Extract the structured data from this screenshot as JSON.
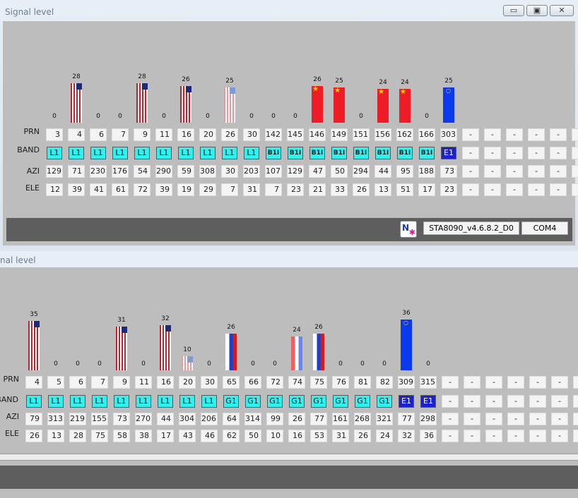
{
  "windows": [
    {
      "title": "Signal level",
      "row_labels": [
        "PRN",
        "BAND",
        "AZI",
        "ELE"
      ],
      "satellites": [
        {
          "level": 0,
          "flag": "none",
          "prn": "3",
          "band": "L1",
          "azi": "129",
          "ele": "12"
        },
        {
          "level": 28,
          "flag": "us",
          "prn": "4",
          "band": "L1",
          "azi": "71",
          "ele": "39"
        },
        {
          "level": 0,
          "flag": "none",
          "prn": "6",
          "band": "L1",
          "azi": "230",
          "ele": "41"
        },
        {
          "level": 0,
          "flag": "none",
          "prn": "7",
          "band": "L1",
          "azi": "176",
          "ele": "61"
        },
        {
          "level": 28,
          "flag": "us",
          "prn": "9",
          "band": "L1",
          "azi": "54",
          "ele": "72"
        },
        {
          "level": 0,
          "flag": "none",
          "prn": "11",
          "band": "L1",
          "azi": "290",
          "ele": "39"
        },
        {
          "level": 26,
          "flag": "us",
          "prn": "16",
          "band": "L1",
          "azi": "59",
          "ele": "19"
        },
        {
          "level": 0,
          "flag": "none",
          "prn": "20",
          "band": "L1",
          "azi": "308",
          "ele": "29"
        },
        {
          "level": 25,
          "flag": "us-faded",
          "prn": "26",
          "band": "L1",
          "azi": "30",
          "ele": "7"
        },
        {
          "level": 0,
          "flag": "none",
          "prn": "30",
          "band": "L1",
          "azi": "203",
          "ele": "31"
        },
        {
          "level": 0,
          "flag": "none",
          "prn": "142",
          "band": "B1I",
          "azi": "107",
          "ele": "7"
        },
        {
          "level": 0,
          "flag": "none",
          "prn": "145",
          "band": "B1I",
          "azi": "129",
          "ele": "23"
        },
        {
          "level": 26,
          "flag": "cn",
          "prn": "146",
          "band": "B1I",
          "azi": "47",
          "ele": "21"
        },
        {
          "level": 25,
          "flag": "cn",
          "prn": "149",
          "band": "B1I",
          "azi": "50",
          "ele": "33"
        },
        {
          "level": 0,
          "flag": "none",
          "prn": "151",
          "band": "B1I",
          "azi": "294",
          "ele": "26"
        },
        {
          "level": 24,
          "flag": "cn",
          "prn": "156",
          "band": "B1I",
          "azi": "44",
          "ele": "13"
        },
        {
          "level": 24,
          "flag": "cn",
          "prn": "162",
          "band": "B1I",
          "azi": "95",
          "ele": "51"
        },
        {
          "level": 0,
          "flag": "none",
          "prn": "166",
          "band": "B1I",
          "azi": "188",
          "ele": "17"
        },
        {
          "level": 25,
          "flag": "eu",
          "prn": "303",
          "band": "E1",
          "azi": "73",
          "ele": "23"
        }
      ],
      "empty_count": 6,
      "empty_text": "-",
      "footer": {
        "version": "STA8090_v4.6.8.2_D0",
        "port": "COM4"
      }
    },
    {
      "title": "nal level",
      "row_labels": [
        "PRN",
        "BAND",
        "AZI",
        "ELE"
      ],
      "satellites": [
        {
          "level": 35,
          "flag": "us",
          "prn": "4",
          "band": "L1",
          "azi": "79",
          "ele": "26"
        },
        {
          "level": 0,
          "flag": "none",
          "prn": "5",
          "band": "L1",
          "azi": "313",
          "ele": "13"
        },
        {
          "level": 0,
          "flag": "none",
          "prn": "6",
          "band": "L1",
          "azi": "219",
          "ele": "28"
        },
        {
          "level": 0,
          "flag": "none",
          "prn": "7",
          "band": "L1",
          "azi": "155",
          "ele": "75"
        },
        {
          "level": 31,
          "flag": "us",
          "prn": "9",
          "band": "L1",
          "azi": "73",
          "ele": "58"
        },
        {
          "level": 0,
          "flag": "none",
          "prn": "11",
          "band": "L1",
          "azi": "270",
          "ele": "38"
        },
        {
          "level": 32,
          "flag": "us",
          "prn": "16",
          "band": "L1",
          "azi": "44",
          "ele": "17"
        },
        {
          "level": 10,
          "flag": "us-faded",
          "prn": "20",
          "band": "L1",
          "azi": "304",
          "ele": "43"
        },
        {
          "level": 0,
          "flag": "none",
          "prn": "30",
          "band": "L1",
          "azi": "206",
          "ele": "46"
        },
        {
          "level": 26,
          "flag": "ru",
          "prn": "65",
          "band": "G1",
          "azi": "64",
          "ele": "62"
        },
        {
          "level": 0,
          "flag": "none",
          "prn": "66",
          "band": "G1",
          "azi": "314",
          "ele": "50"
        },
        {
          "level": 0,
          "flag": "none",
          "prn": "72",
          "band": "G1",
          "azi": "99",
          "ele": "10"
        },
        {
          "level": 24,
          "flag": "ru-faded",
          "prn": "74",
          "band": "G1",
          "azi": "26",
          "ele": "16"
        },
        {
          "level": 26,
          "flag": "ru",
          "prn": "75",
          "band": "G1",
          "azi": "77",
          "ele": "53"
        },
        {
          "level": 0,
          "flag": "none",
          "prn": "76",
          "band": "G1",
          "azi": "161",
          "ele": "31"
        },
        {
          "level": 0,
          "flag": "none",
          "prn": "81",
          "band": "G1",
          "azi": "268",
          "ele": "26"
        },
        {
          "level": 0,
          "flag": "none",
          "prn": "82",
          "band": "G1",
          "azi": "321",
          "ele": "24"
        },
        {
          "level": 36,
          "flag": "eu",
          "prn": "309",
          "band": "E1",
          "azi": "77",
          "ele": "32"
        },
        {
          "level": 0,
          "flag": "none",
          "prn": "315",
          "band": "E1",
          "azi": "298",
          "ele": "36"
        }
      ],
      "empty_count": 7,
      "empty_text": "-",
      "footer": null
    }
  ],
  "colors": {
    "band_default": "#33f0f0",
    "band_e1": "#1a22c8",
    "gps_stripe_red": "#c8202b",
    "gps_canton": "#1c2a78",
    "beidou_red": "#ee1c25",
    "beidou_star": "#ffde00",
    "galileo_blue": "#0a39f0",
    "panel_gray": "#bdbdbd",
    "footer_gray": "#5e5e5e"
  },
  "icons": [
    "minimize-icon",
    "maximize-icon",
    "close-icon",
    "app-logo-icon"
  ]
}
